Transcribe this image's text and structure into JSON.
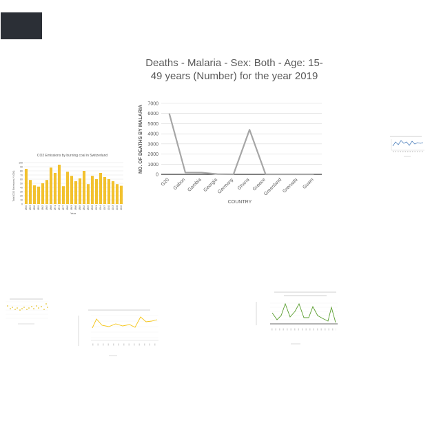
{
  "chart_data": [
    {
      "type": "line",
      "title": "Deaths - Malaria - Sex: Both - Age: 15-49 years (Number) for the year 2019",
      "xlabel": "COUNTRY",
      "ylabel": "NO. OF DEATHS BY MALARIA",
      "categories": [
        "G20",
        "Gabon",
        "Gambia",
        "Georgia",
        "Germany",
        "Ghana",
        "Greece",
        "Greenland",
        "Grenada",
        "Guam"
      ],
      "values": [
        6000,
        180,
        170,
        20,
        0,
        4400,
        0,
        0,
        0,
        0
      ],
      "ylim": [
        0,
        7000
      ],
      "yticks": [
        "0",
        "1000",
        "2000",
        "3000",
        "4000",
        "5000",
        "6000",
        "7000"
      ],
      "color": "#a6a6a6",
      "grid": true
    },
    {
      "type": "bar",
      "title": "CO2 Emissions by burning coal in Switzerland",
      "xlabel": "Year",
      "ylabel": "Total CO2 Emissions (*1000)",
      "categories": [
        "1850",
        "1853",
        "1856",
        "1859",
        "1862",
        "1865",
        "1868",
        "1871",
        "1874",
        "1877",
        "1880",
        "1883",
        "1886",
        "1889",
        "1892",
        "1895",
        "1898",
        "1901",
        "1904",
        "1907",
        "1910",
        "1913",
        "1916",
        "1919"
      ],
      "values": [
        85,
        58,
        45,
        42,
        50,
        58,
        88,
        75,
        95,
        43,
        78,
        68,
        55,
        62,
        80,
        48,
        68,
        60,
        75,
        65,
        60,
        55,
        48,
        44
      ],
      "ylim": [
        0,
        100
      ],
      "yticks": [
        "0",
        "10",
        "20",
        "30",
        "40",
        "50",
        "60",
        "70",
        "80",
        "90",
        "100"
      ],
      "color": "#f2c12e",
      "grid": true
    }
  ],
  "colors": {
    "grid": "#d9d9d9",
    "axis_text": "#595959",
    "thumb_dark": "#2b2f36"
  },
  "thumbnails": [
    {
      "name": "dark-chart-thumbnail",
      "colors": [
        "#2b2f36"
      ]
    },
    {
      "name": "blue-line-chart-thumbnail",
      "colors": [
        "#4f81bd"
      ]
    },
    {
      "name": "yellow-scatter-thumbnail",
      "colors": [
        "#e6c229"
      ]
    },
    {
      "name": "yellow-line-chart-thumbnail",
      "colors": [
        "#f5c518"
      ]
    },
    {
      "name": "green-line-chart-thumbnail",
      "colors": [
        "#5a9e2f"
      ]
    }
  ]
}
